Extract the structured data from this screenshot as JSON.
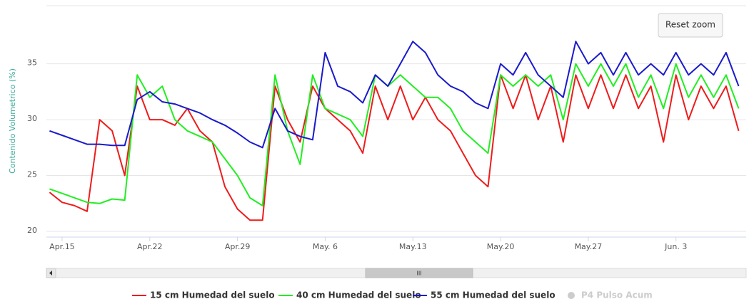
{
  "chart_data": {
    "type": "line",
    "y_axis_label": "Contenido Volumetrico (%)",
    "x": [
      104,
      105,
      106,
      107,
      108,
      109,
      110,
      111,
      112,
      113,
      114,
      115,
      116,
      117,
      118,
      119,
      120,
      121,
      122,
      123,
      124,
      125,
      126,
      127,
      128,
      129,
      130,
      131,
      132,
      133,
      134,
      135,
      136,
      137,
      138,
      139,
      140,
      141,
      142,
      143,
      144,
      145,
      146,
      147,
      148,
      149,
      150,
      151,
      152,
      153,
      154,
      155,
      156,
      157,
      158,
      159
    ],
    "xlim": [
      103.75,
      159.6
    ],
    "xticks": [
      {
        "value": 105,
        "label": "Apr.15"
      },
      {
        "value": 112,
        "label": "Apr.22"
      },
      {
        "value": 119,
        "label": "Apr.29"
      },
      {
        "value": 126,
        "label": "May. 6"
      },
      {
        "value": 133,
        "label": "May.13"
      },
      {
        "value": 140,
        "label": "May.20"
      },
      {
        "value": 147,
        "label": "May.27"
      },
      {
        "value": 154,
        "label": "Jun. 3"
      }
    ],
    "ylim": [
      20,
      40.2
    ],
    "yticks": [
      20,
      25,
      30,
      35
    ],
    "grid": true,
    "series": [
      {
        "name": "15 cm Humedad del suelo",
        "color": "#ee1c1c",
        "values": [
          23.5,
          22.6,
          22.3,
          21.8,
          30,
          29,
          25,
          33,
          30,
          30,
          29.5,
          31,
          29,
          28,
          24,
          22,
          21,
          21,
          33,
          30,
          28,
          33,
          31,
          30,
          29,
          27,
          33,
          30,
          33,
          30,
          32,
          30,
          29,
          27,
          25,
          24,
          34,
          31,
          34,
          30,
          33,
          28,
          34,
          31,
          34,
          31,
          34,
          31,
          33,
          28,
          34,
          30,
          33,
          31,
          33,
          29
        ]
      },
      {
        "name": "40 cm Humedad del suelo",
        "color": "#22ee22",
        "values": [
          23.8,
          23.4,
          23,
          22.6,
          22.5,
          22.9,
          22.8,
          34,
          32,
          33,
          30,
          29,
          28.5,
          28,
          26.5,
          25,
          23,
          22.3,
          34,
          29,
          26,
          34,
          31,
          30.5,
          30,
          28.5,
          34,
          33,
          34,
          33,
          32,
          32,
          31,
          29,
          28,
          27,
          34,
          33,
          34,
          33,
          34,
          30,
          35,
          33,
          35,
          33,
          35,
          32,
          34,
          31,
          35,
          32,
          34,
          32,
          34,
          31
        ]
      },
      {
        "name": "55 cm Humedad del suelo",
        "color": "#1a1acc",
        "values": [
          29,
          28.6,
          28.2,
          27.8,
          27.8,
          27.7,
          27.7,
          31.8,
          32.5,
          31.6,
          31.4,
          31,
          30.6,
          30,
          29.5,
          28.8,
          28,
          27.5,
          31,
          29,
          28.5,
          28.2,
          36,
          33,
          32.5,
          31.5,
          34,
          33,
          35,
          37,
          36,
          34,
          33,
          32.5,
          31.5,
          31,
          35,
          34,
          36,
          34,
          33,
          32,
          37,
          35,
          36,
          34,
          36,
          34,
          35,
          34,
          36,
          34,
          35,
          34,
          36,
          33
        ]
      }
    ],
    "hidden_legend_item": "P4 Pulso Acum",
    "reset_button": "Reset zoom",
    "scrollbar_grip": "III"
  }
}
